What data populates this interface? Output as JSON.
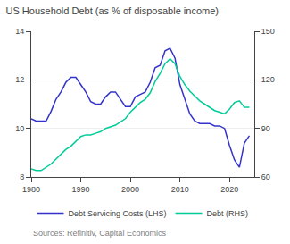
{
  "chart_data": {
    "type": "line",
    "title": "US Household Debt (as % of disposable income)",
    "annotations": [
      "Sources: Refinitiv, Capital Economics"
    ],
    "x": [
      1980,
      1981,
      1982,
      1983,
      1984,
      1985,
      1986,
      1987,
      1988,
      1989,
      1990,
      1991,
      1992,
      1993,
      1994,
      1995,
      1996,
      1997,
      1998,
      1999,
      2000,
      2001,
      2002,
      2003,
      2004,
      2005,
      2006,
      2007,
      2008,
      2009,
      2010,
      2011,
      2012,
      2013,
      2014,
      2015,
      2016,
      2017,
      2018,
      2019,
      2020,
      2021,
      2022,
      2023,
      2024
    ],
    "series": [
      {
        "name": "Debt Servicing Costs (LHS)",
        "color": "#3333cc",
        "values": [
          10.4,
          10.3,
          10.3,
          10.3,
          10.7,
          11.2,
          11.5,
          11.9,
          12.1,
          12.1,
          11.8,
          11.5,
          11.1,
          11.0,
          11.0,
          11.3,
          11.5,
          11.5,
          11.2,
          10.9,
          10.9,
          11.3,
          11.4,
          11.5,
          11.9,
          12.5,
          12.6,
          13.2,
          13.3,
          12.9,
          11.8,
          11.2,
          10.6,
          10.3,
          10.2,
          10.2,
          10.2,
          10.1,
          10.1,
          10.0,
          9.3,
          8.7,
          8.4,
          9.4,
          9.7
        ]
      },
      {
        "name": "Debt (RHS)",
        "color": "#00cc99",
        "axis": "y2",
        "values": [
          65,
          64,
          64,
          66,
          68,
          71,
          74,
          77,
          79,
          82,
          85,
          86,
          86,
          87,
          88,
          90,
          91,
          92,
          94,
          96,
          100,
          103,
          106,
          108,
          112,
          119,
          124,
          130,
          133,
          130,
          122,
          117,
          113,
          110,
          107,
          105,
          103,
          101,
          100,
          99,
          102,
          106,
          107,
          103,
          103
        ]
      }
    ],
    "xlim": [
      1980,
      2025
    ],
    "xticks": [
      1980,
      1990,
      2000,
      2010,
      2020
    ],
    "ylim": [
      8,
      14
    ],
    "yticks": [
      8,
      10,
      12,
      14
    ],
    "y2lim": [
      60,
      150
    ],
    "y2ticks": [
      60,
      90,
      120,
      150
    ],
    "grid": true,
    "legend": "bottom"
  }
}
